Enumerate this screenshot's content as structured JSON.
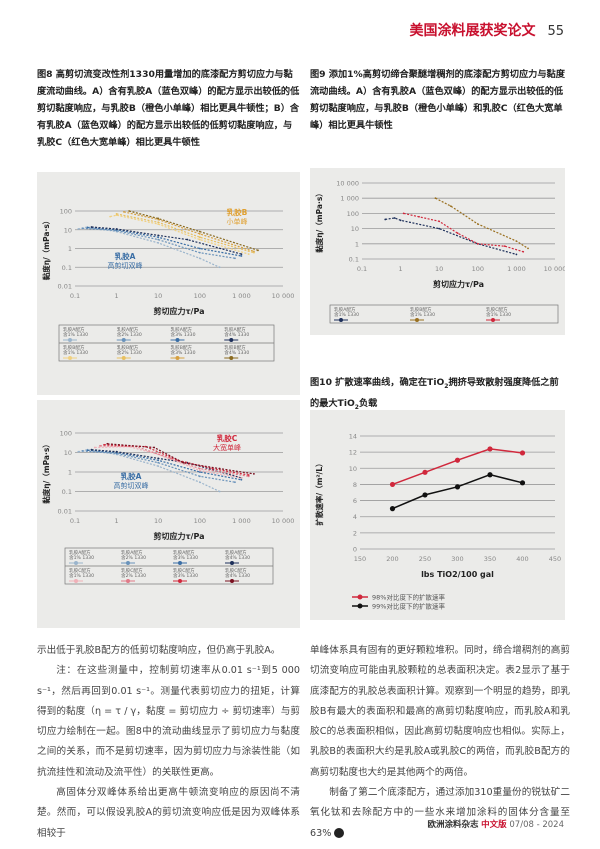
{
  "header": {
    "section_title": "美国涂料展获奖论文",
    "page_number": "55"
  },
  "fig8_caption": "图8 高剪切流变改性剂1330用量增加的底漆配方剪切应力与黏度流动曲线。A）含有乳胶A（蓝色双峰）的配方显示出较低的低剪切黏度响应，与乳胶B（橙色小单峰）相比更具牛顿性；B）含有乳胶A（蓝色双峰）的配方显示出较低的低剪切黏度响应，与乳胶C（红色大宽单峰）相比更具牛顿性",
  "fig9_caption": "图9 添加1%高剪切缔合聚醚增稠剂的底漆配方剪切应力与黏度流动曲线。A）含有乳胶A（蓝色双峰）的配方显示出较低的低剪切黏度响应，与乳胶B（橙色小单峰）和乳胶C（红色大宽单峰）相比更具牛顿性",
  "fig10_caption_parts": [
    "图10 扩散速率曲线，确定在TiO",
    "2",
    "拥挤导致散射强度降低之前的最大TiO",
    "2",
    "负载"
  ],
  "colors": {
    "accent": "#c8102e",
    "panel_bg": "#ebebe9",
    "blue": "#3a6ea5",
    "orange": "#e0a030",
    "red": "#d0283c",
    "black": "#111111"
  },
  "chart_data": [
    {
      "id": "fig8a",
      "type": "line",
      "xscale": "log",
      "yscale": "log",
      "xlabel": "剪切应力τ/Pa",
      "ylabel": "黏度η/（mPa·s）",
      "xticks": [
        "0.1",
        "1",
        "10",
        "100",
        "1 000",
        "10 000"
      ],
      "yticks": [
        "100",
        "10",
        "1",
        "0.1",
        "0.01"
      ],
      "xlim": [
        0.1,
        10000
      ],
      "ylim": [
        0.01,
        100
      ],
      "grid": true,
      "annotations": [
        {
          "title": "乳胶B",
          "subtitle": "小单峰",
          "color": "#e0a030"
        },
        {
          "title": "乳胶A",
          "subtitle": "高剪切双峰",
          "color": "#3a6ea5"
        }
      ],
      "legend_rows": [
        [
          "乳胶A配方 含1% 1330",
          "乳胶A配方 含2% 1330",
          "乳胶A配方 含3% 1330",
          "乳胶A配方 含4% 1330"
        ],
        [
          "乳胶B配方 含1% 1330",
          "乳胶B配方 含2% 1330",
          "乳胶B配方 含3% 1330",
          "乳胶B配方 含4% 1330"
        ]
      ],
      "series": [
        {
          "name": "乳胶A配方 含1% 1330",
          "color": "#9ab4cc",
          "points": [
            [
              0.12,
              11
            ],
            [
              0.2,
              14
            ],
            [
              1,
              8
            ],
            [
              10,
              2
            ],
            [
              100,
              0.3
            ],
            [
              300,
              0.1
            ]
          ]
        },
        {
          "name": "乳胶A配方 含2% 1330",
          "color": "#6a93bb",
          "points": [
            [
              0.15,
              12
            ],
            [
              1,
              9
            ],
            [
              10,
              3
            ],
            [
              100,
              0.6
            ],
            [
              700,
              0.3
            ]
          ]
        },
        {
          "name": "乳胶A配方 含3% 1330",
          "color": "#3a6ea5",
          "points": [
            [
              0.2,
              13
            ],
            [
              1,
              10
            ],
            [
              10,
              4
            ],
            [
              100,
              1
            ],
            [
              1000,
              0.4
            ]
          ]
        },
        {
          "name": "乳胶A配方 含4% 1330",
          "color": "#1d2f5a",
          "points": [
            [
              0.25,
              14
            ],
            [
              1,
              11
            ],
            [
              10,
              5
            ],
            [
              50,
              3
            ],
            [
              1000,
              0.5
            ]
          ]
        },
        {
          "name": "乳胶B配方 含1% 1330",
          "color": "#f0d080",
          "points": [
            [
              0.7,
              50
            ],
            [
              1,
              60
            ],
            [
              10,
              20
            ],
            [
              100,
              3
            ],
            [
              1500,
              0.5
            ]
          ]
        },
        {
          "name": "乳胶B配方 含2% 1330",
          "color": "#e8c060",
          "points": [
            [
              1,
              70
            ],
            [
              10,
              25
            ],
            [
              100,
              4
            ],
            [
              2000,
              0.6
            ]
          ]
        },
        {
          "name": "乳胶B配方 含3% 1330",
          "color": "#d6a040",
          "points": [
            [
              1.5,
              90
            ],
            [
              10,
              35
            ],
            [
              100,
              6
            ],
            [
              2000,
              0.7
            ]
          ]
        },
        {
          "name": "乳胶B配方 含4% 1330",
          "color": "#8a6a20",
          "points": [
            [
              2,
              100
            ],
            [
              10,
              40
            ],
            [
              100,
              8
            ],
            [
              2500,
              0.8
            ]
          ]
        }
      ]
    },
    {
      "id": "fig8b",
      "type": "line",
      "xscale": "log",
      "yscale": "log",
      "xlabel": "剪切应力τ/Pa",
      "ylabel": "黏度η/（mPa·s）",
      "xticks": [
        "0.1",
        "1",
        "10",
        "100",
        "1 000",
        "10 000"
      ],
      "yticks": [
        "100",
        "10",
        "1",
        "0.1",
        "0.01"
      ],
      "xlim": [
        0.1,
        10000
      ],
      "ylim": [
        0.01,
        100
      ],
      "grid": true,
      "annotations": [
        {
          "title": "乳胶C",
          "subtitle": "大宽单峰",
          "color": "#d0283c"
        },
        {
          "title": "乳胶A",
          "subtitle": "高剪切双峰",
          "color": "#3a6ea5"
        }
      ],
      "legend_rows": [
        [
          "乳胶A配方 含1% 1330",
          "乳胶A配方 含2% 1330",
          "乳胶A配方 含3% 1330",
          "乳胶A配方 含4% 1330"
        ],
        [
          "乳胶C配方 含1% 1330",
          "乳胶C配方 含2% 1330",
          "乳胶C配方 含3% 1330",
          "乳胶C配方 含4% 1330"
        ]
      ],
      "series": [
        {
          "name": "乳胶A配方 含1% 1330",
          "color": "#9ab4cc",
          "points": [
            [
              0.12,
              11
            ],
            [
              0.2,
              14
            ],
            [
              1,
              8
            ],
            [
              10,
              2
            ],
            [
              100,
              0.3
            ],
            [
              300,
              0.1
            ]
          ]
        },
        {
          "name": "乳胶A配方 含2% 1330",
          "color": "#6a93bb",
          "points": [
            [
              0.15,
              12
            ],
            [
              1,
              9
            ],
            [
              10,
              3
            ],
            [
              100,
              0.6
            ],
            [
              700,
              0.3
            ]
          ]
        },
        {
          "name": "乳胶A配方 含3% 1330",
          "color": "#3a6ea5",
          "points": [
            [
              0.2,
              13
            ],
            [
              1,
              10
            ],
            [
              10,
              4
            ],
            [
              100,
              1
            ],
            [
              1000,
              0.4
            ]
          ]
        },
        {
          "name": "乳胶A配方 含4% 1330",
          "color": "#1d2f5a",
          "points": [
            [
              0.25,
              14
            ],
            [
              1,
              11
            ],
            [
              10,
              5
            ],
            [
              50,
              3
            ],
            [
              1000,
              0.5
            ]
          ]
        },
        {
          "name": "乳胶C配方 含1% 1330",
          "color": "#f0b0b8",
          "points": [
            [
              0.3,
              18
            ],
            [
              2,
              20
            ],
            [
              10,
              8
            ],
            [
              100,
              1.2
            ],
            [
              1000,
              0.5
            ]
          ]
        },
        {
          "name": "乳胶C配方 含2% 1330",
          "color": "#e07a88",
          "points": [
            [
              0.4,
              22
            ],
            [
              3,
              20
            ],
            [
              20,
              5
            ],
            [
              100,
              1.5
            ],
            [
              1500,
              0.6
            ]
          ]
        },
        {
          "name": "乳胶C配方 含3% 1330",
          "color": "#d0283c",
          "points": [
            [
              0.5,
              25
            ],
            [
              5,
              20
            ],
            [
              30,
              4
            ],
            [
              200,
              1.5
            ],
            [
              1500,
              0.7
            ]
          ]
        },
        {
          "name": "乳胶C配方 含4% 1330",
          "color": "#7a1020",
          "points": [
            [
              0.6,
              28
            ],
            [
              8,
              18
            ],
            [
              40,
              3
            ],
            [
              300,
              1.5
            ],
            [
              2000,
              0.8
            ]
          ]
        }
      ]
    },
    {
      "id": "fig9",
      "type": "line",
      "xscale": "log",
      "yscale": "log",
      "xlabel": "剪切应力τ/Pa",
      "ylabel": "黏度η/（mPa·s）",
      "xticks": [
        "0.1",
        "1",
        "10",
        "100",
        "1 000",
        "10 000"
      ],
      "yticks": [
        "10 000",
        "1 000",
        "100",
        "10",
        "1",
        "0.1"
      ],
      "xlim": [
        0.1,
        10000
      ],
      "ylim": [
        0.1,
        10000
      ],
      "grid": true,
      "legend_rows": [
        [
          "乳胶A配方 含1% 1330",
          "乳胶B配方 含1% 1330",
          "乳胶C配方 含1% 1330"
        ]
      ],
      "series": [
        {
          "name": "乳胶A配方 含1% 1330",
          "color": "#1d2f5a",
          "points": [
            [
              0.4,
              40
            ],
            [
              0.7,
              50
            ],
            [
              1,
              35
            ],
            [
              10,
              10
            ],
            [
              100,
              1
            ],
            [
              1000,
              0.2
            ]
          ]
        },
        {
          "name": "乳胶B配方 含1% 1330",
          "color": "#9a7020",
          "points": [
            [
              8,
              1000
            ],
            [
              20,
              300
            ],
            [
              100,
              20
            ],
            [
              1000,
              1.5
            ],
            [
              2000,
              0.5
            ]
          ]
        },
        {
          "name": "乳胶C配方 含1% 1330",
          "color": "#d0283c",
          "points": [
            [
              1.2,
              100
            ],
            [
              3,
              60
            ],
            [
              10,
              30
            ],
            [
              30,
              5
            ],
            [
              100,
              1
            ],
            [
              500,
              0.7
            ],
            [
              1500,
              0.3
            ]
          ]
        }
      ]
    },
    {
      "id": "fig10",
      "type": "line",
      "xlabel": "lbs TiO2/100 gal",
      "ylabel": "扩散速率/（m²/L）",
      "xticks": [
        "150",
        "200",
        "250",
        "300",
        "350",
        "400",
        "450"
      ],
      "yticks": [
        "14",
        "12",
        "10",
        "8",
        "6",
        "4",
        "2",
        "0"
      ],
      "xlim": [
        150,
        450
      ],
      "ylim": [
        0,
        14
      ],
      "grid": true,
      "legend": "bottom-left",
      "x": [
        200,
        250,
        300,
        350,
        400
      ],
      "series": [
        {
          "name": "98%对比度下的扩散速率",
          "color": "#d0283c",
          "values": [
            8,
            9.5,
            11,
            12.4,
            11.9
          ]
        },
        {
          "name": "99%对比度下的扩散速率",
          "color": "#111111",
          "values": [
            5,
            6.7,
            7.7,
            9.2,
            8.2
          ]
        }
      ]
    }
  ],
  "left_body": [
    "示出低于乳胶B配方的低剪切黏度响应，但仍高于乳胶A。",
    "注：在这些测量中，控制剪切速率从0.01 s⁻¹到5 000 s⁻¹，然后再回到0.01 s⁻¹。测量代表剪切应力的扭矩，计算得到的黏度（η = τ / γ，黏度 = 剪切应力 ÷ 剪切速率）与剪切应力绘制在一起。图8中的流动曲线显示了剪切应力与黏度之间的关系，而不是剪切速率，因为剪切应力与涂装性能（如抗流挂性和流动及流平性）的关联性更高。",
    "高固体分双峰体系给出更高牛顿流变响应的原因尚不清楚。然而，可以假设乳胶A的剪切流变响应低是因为双峰体系相较于"
  ],
  "right_body": [
    "单峰体系具有固有的更好颗粒堆积。同时，缔合增稠剂的高剪切流变响应可能由乳胶颗粒的总表面积决定。表2显示了基于底漆配方的乳胶总表面积计算。观察到一个明显的趋势，即乳胶B有最大的表面积和最高的高剪切黏度响应，而乳胶A和乳胶C的总表面积相似，因此高剪切黏度响应也相似。实际上，乳胶B的表面积大约是乳胶A或乳胶C的两倍，而乳胶B配方的高剪切黏度也大约是其他两个的两倍。",
    "制备了第二个底漆配方，通过添加310重量份的锐钛矿二氧化钛和去除配方中的一些水来增加涂料的固体分含量至63%"
  ],
  "footer": {
    "magazine": "欧洲涂料杂志",
    "edition": "中文版",
    "issue": "07/08 - 2024"
  }
}
